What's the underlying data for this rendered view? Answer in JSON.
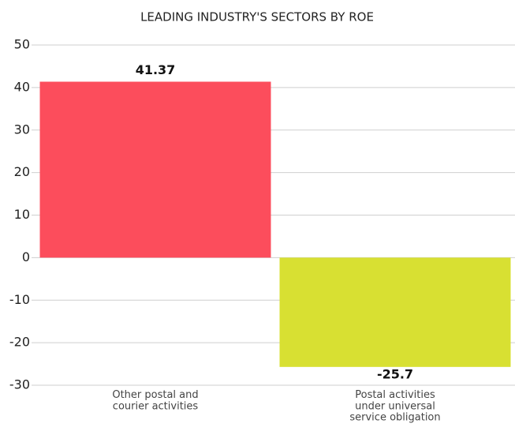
{
  "chart_data": {
    "type": "bar",
    "title": "LEADING INDUSTRY'S SECTORS BY ROE",
    "categories": [
      "Other postal and courier activities",
      "Postal activities under universal service obligation"
    ],
    "values": [
      41.37,
      -25.7
    ],
    "colors": [
      "#fc4d5c",
      "#d8e032"
    ],
    "ylim": [
      -30,
      50
    ],
    "yticks": [
      -30,
      -20,
      -10,
      0,
      10,
      20,
      30,
      40,
      50
    ],
    "grid": true
  }
}
